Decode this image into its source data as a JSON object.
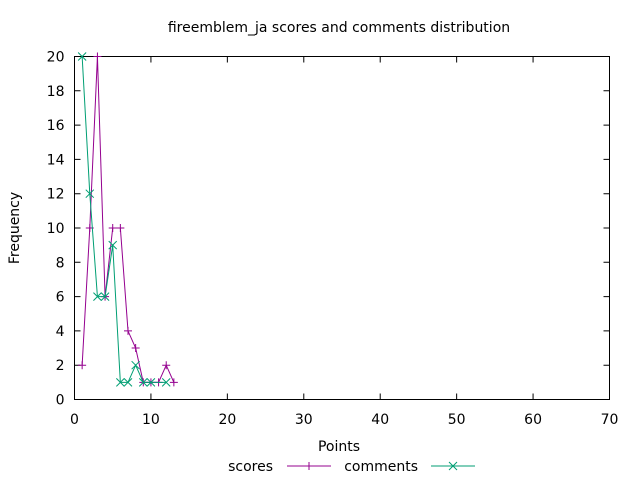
{
  "chart_data": {
    "type": "line",
    "title": "fireemblem_ja scores and comments distribution",
    "xlabel": "Points",
    "ylabel": "Frequency",
    "xlim": [
      0,
      70
    ],
    "ylim": [
      0,
      20
    ],
    "xticks": [
      0,
      10,
      20,
      30,
      40,
      50,
      60,
      70
    ],
    "yticks": [
      0,
      2,
      4,
      6,
      8,
      10,
      12,
      14,
      16,
      18,
      20
    ],
    "grid": false,
    "legend_position": "bottom-center",
    "series": [
      {
        "name": "scores",
        "color": "#94008f",
        "marker": "plus",
        "points": [
          [
            1,
            2
          ],
          [
            2,
            10
          ],
          [
            3,
            20
          ],
          [
            4,
            6
          ],
          [
            5,
            10
          ],
          [
            6,
            10
          ],
          [
            7,
            4
          ],
          [
            8,
            3
          ],
          [
            9,
            1
          ],
          [
            10,
            1
          ],
          [
            11,
            1
          ],
          [
            12,
            2
          ],
          [
            13,
            1
          ]
        ]
      },
      {
        "name": "comments",
        "color": "#009e73",
        "marker": "cross",
        "points": [
          [
            1,
            20
          ],
          [
            2,
            12
          ],
          [
            3,
            6
          ],
          [
            4,
            6
          ],
          [
            5,
            9
          ],
          [
            6,
            1
          ],
          [
            7,
            1
          ],
          [
            8,
            2
          ],
          [
            9,
            1
          ],
          [
            10,
            1
          ],
          [
            12,
            1
          ]
        ]
      }
    ]
  }
}
